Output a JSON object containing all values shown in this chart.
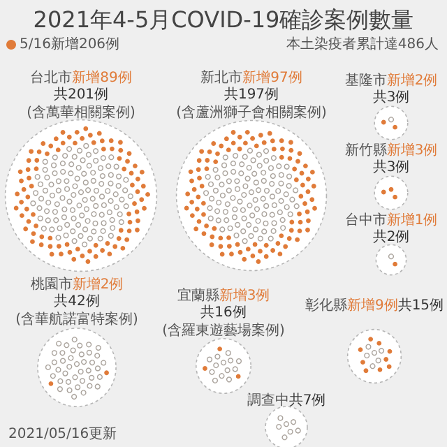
{
  "chart_data": {
    "type": "other",
    "title": "2021年4-5月COVID-19確診案例數量",
    "subtitle": "本土染疫者累計達486人",
    "categories": [
      "台北市",
      "新北市",
      "基隆市",
      "新竹縣",
      "台中市",
      "桃園市",
      "宜蘭縣",
      "彰化縣",
      "調查中"
    ],
    "series": [
      {
        "name": "5/16新增206例",
        "color": "#e07b39",
        "values": [
          89,
          97,
          2,
          3,
          1,
          2,
          3,
          9,
          null
        ],
        "value_labels": [
          "新增89例",
          "新增97例",
          "新增2例",
          "新增3例",
          "新增1例",
          "新增2例",
          "新增3例",
          "新增9例",
          null
        ]
      },
      {
        "color": "#aaa39c",
        "values": [
          201,
          197,
          3,
          3,
          2,
          42,
          16,
          15,
          7
        ],
        "value_labels": [
          "共201例",
          "共197例",
          "共3例",
          "共3例",
          "共2例",
          "共42例",
          "共16例",
          "共15例",
          "共7例"
        ]
      }
    ],
    "legend": "top left",
    "annotations": [
      {
        "text": "(含萬華相關案例)",
        "x": "台北市"
      },
      {
        "text": "(含蘆洲獅子會相關案例)",
        "x": "新北市"
      },
      {
        "text": "(含華航諾富特案例)",
        "x": "桃園市"
      },
      {
        "text": "(含羅東遊藝場案例)",
        "x": "宜蘭縣"
      },
      "2021/05/16更新"
    ]
  }
}
